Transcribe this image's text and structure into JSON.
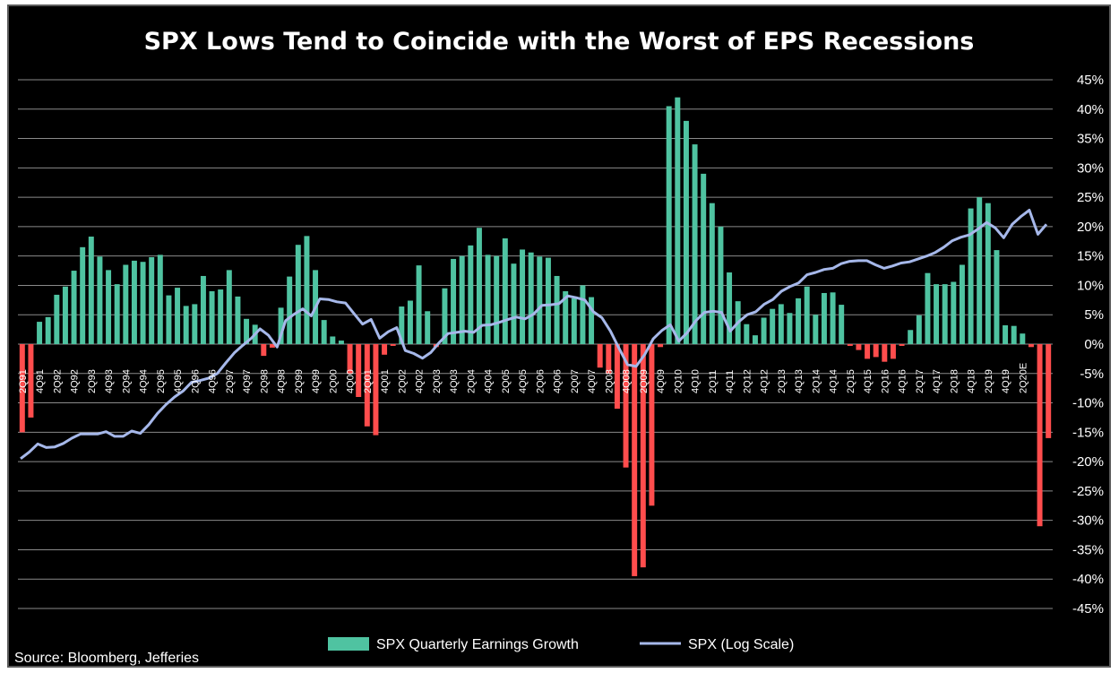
{
  "chart_data": {
    "type": "bar",
    "title": "SPX Lows Tend to Coincide with the Worst of EPS Recessions",
    "source": "Source: Bloomberg, Jefferies",
    "ylim": [
      -45,
      45
    ],
    "y_ticks": [
      "45%",
      "40%",
      "35%",
      "30%",
      "25%",
      "20%",
      "15%",
      "10%",
      "5%",
      "0%",
      "-5%",
      "-10%",
      "-15%",
      "-20%",
      "-25%",
      "-30%",
      "-35%",
      "-40%",
      "-45%"
    ],
    "grid": true,
    "legend_position": "bottom",
    "colors": {
      "positive": "#4fc3a1",
      "negative": "#ff4d4d",
      "line": "#a6b8ea"
    },
    "x_tick_labels": [
      "2Q91",
      "4Q91",
      "2Q92",
      "4Q92",
      "2Q93",
      "4Q93",
      "2Q94",
      "4Q94",
      "2Q95",
      "4Q95",
      "2Q96",
      "4Q96",
      "2Q97",
      "4Q97",
      "2Q98",
      "4Q98",
      "2Q99",
      "4Q99",
      "2Q00",
      "4Q00",
      "2Q01",
      "4Q01",
      "2Q02",
      "4Q02",
      "2Q03",
      "4Q03",
      "2Q04",
      "4Q04",
      "2Q05",
      "4Q05",
      "2Q06",
      "4Q06",
      "2Q07",
      "4Q07",
      "2Q08",
      "4Q08",
      "2Q09",
      "4Q09",
      "2Q10",
      "4Q10",
      "2Q11",
      "4Q11",
      "2Q12",
      "4Q12",
      "2Q13",
      "4Q13",
      "2Q14",
      "4Q14",
      "2Q15",
      "4Q15",
      "2Q16",
      "4Q16",
      "2Q17",
      "4Q17",
      "2Q18",
      "4Q18",
      "2Q19",
      "4Q19",
      "2Q20E"
    ],
    "series": [
      {
        "name": "SPX Quarterly Earnings Growth",
        "type": "bar",
        "values": [
          -15,
          -12.5,
          3.8,
          4.6,
          8.4,
          9.8,
          12.5,
          16.5,
          18.3,
          14.9,
          12.6,
          10.2,
          13.5,
          14.2,
          14,
          14.8,
          15.2,
          8.3,
          9.6,
          6.5,
          6.8,
          11.6,
          9,
          9.3,
          12.6,
          8.1,
          4.3,
          3.3,
          -2,
          -0.6,
          6.2,
          11.5,
          16.9,
          18.4,
          12.6,
          4.1,
          1.3,
          0.6,
          -5,
          -9,
          -14,
          -15.5,
          -1.8,
          -0.3,
          6.4,
          7.4,
          13.4,
          5.6,
          -0.5,
          9.5,
          14.5,
          15,
          16.8,
          19.8,
          15.2,
          15,
          18,
          13.7,
          16.1,
          15.6,
          14.9,
          14.7,
          11.6,
          9,
          7.8,
          10,
          8,
          -4,
          -5,
          -11,
          -21,
          -39.5,
          -38,
          -27.5,
          -0.5,
          40.5,
          42,
          38,
          34,
          29,
          24,
          20,
          12.2,
          7.3,
          3.4,
          1.5,
          4.5,
          6,
          6.8,
          5.3,
          7.8,
          9.8,
          5,
          8.7,
          8.8,
          6.7,
          -0.3,
          -1,
          -2.5,
          -2.2,
          -3,
          -2.5,
          -0.3,
          2.4,
          4.9,
          12.1,
          10.2,
          10.2,
          10.6,
          13.5,
          23.1,
          25,
          24,
          16,
          3.2,
          3.1,
          1.8,
          -0.5,
          -31,
          -16
        ]
      },
      {
        "name": "SPX (Log Scale)",
        "type": "line",
        "values": [
          -19.5,
          -18.4,
          -17,
          -17.6,
          -17.5,
          -16.9,
          -16,
          -15.3,
          -15.3,
          -15.3,
          -14.9,
          -15.7,
          -15.7,
          -14.8,
          -15.2,
          -13.7,
          -11.8,
          -10.3,
          -9,
          -8,
          -6.5,
          -6.2,
          -5.8,
          -5,
          -3.2,
          -1.5,
          -0.2,
          1,
          2.6,
          1.5,
          -0.5,
          4,
          5.1,
          6,
          4.8,
          7.7,
          7.6,
          7.2,
          7,
          5.2,
          3.4,
          4.2,
          1,
          2.1,
          2.8,
          -1.1,
          -1.6,
          -2.4,
          -1.4,
          0.3,
          1.8,
          2,
          2.2,
          2,
          3.2,
          3.3,
          3.7,
          4.2,
          4.6,
          4.3,
          5.1,
          6.6,
          6.7,
          6.9,
          8.2,
          7.9,
          7.5,
          5.5,
          4.5,
          2.2,
          -0.7,
          -3.5,
          -3.8,
          -1.8,
          0.9,
          2.3,
          3.3,
          0.5,
          2,
          4,
          5.4,
          5.6,
          5.4,
          2.2,
          3.8,
          5,
          5.5,
          6.8,
          7.6,
          9,
          9.8,
          10.4,
          11.8,
          12.2,
          12.7,
          12.9,
          13.7,
          14.1,
          14.2,
          14.2,
          13.5,
          12.9,
          13.3,
          13.8,
          14,
          14.5,
          15,
          15.6,
          16.5,
          17.6,
          18.2,
          18.6,
          19.6,
          20.7,
          19.8,
          18.1,
          20.4,
          21.7,
          22.8,
          18.7,
          20.4
        ]
      }
    ]
  }
}
